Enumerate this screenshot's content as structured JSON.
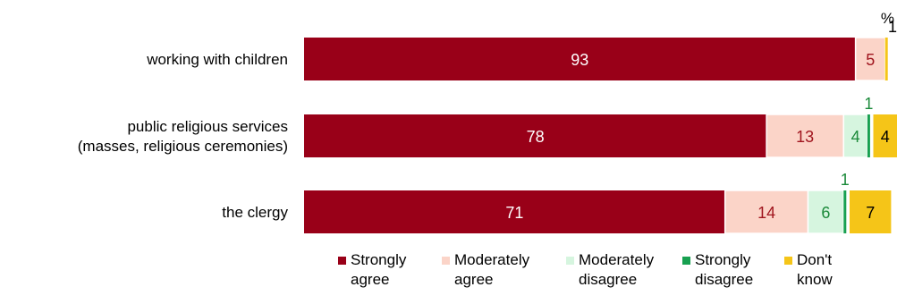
{
  "chart_data": {
    "type": "bar",
    "orientation": "horizontal",
    "stacked": true,
    "unit_label": "%",
    "categories": [
      [
        "working with children"
      ],
      [
        "public religious services",
        "(masses, religious ceremonies)"
      ],
      [
        "the clergy"
      ]
    ],
    "series": [
      {
        "name": "Strongly agree",
        "legend_lines": [
          "Strongly",
          "agree"
        ],
        "color": "#990018",
        "label_color": "#ffffff",
        "values": [
          93,
          78,
          71
        ]
      },
      {
        "name": "Moderately agree",
        "legend_lines": [
          "Moderately",
          "agree"
        ],
        "color": "#fbd4c8",
        "label_color": "#a0151e",
        "values": [
          5,
          13,
          14
        ]
      },
      {
        "name": "Moderately disagree",
        "legend_lines": [
          "Moderately",
          "disagree"
        ],
        "color": "#d6f5df",
        "label_color": "#1b8a3a",
        "values": [
          0,
          4,
          6
        ]
      },
      {
        "name": "Strongly disagree",
        "legend_lines": [
          "Strongly",
          "disagree"
        ],
        "color": "#18a050",
        "label_color": "#1b8a3a",
        "values": [
          0,
          1,
          1
        ]
      },
      {
        "name": "Don't know",
        "legend_lines": [
          "Don't",
          "know"
        ],
        "color": "#f5c518",
        "label_color": "#000000",
        "values": [
          1,
          4,
          7
        ]
      }
    ],
    "xlim": [
      0,
      100
    ],
    "grid": false,
    "legend_position": "bottom"
  }
}
